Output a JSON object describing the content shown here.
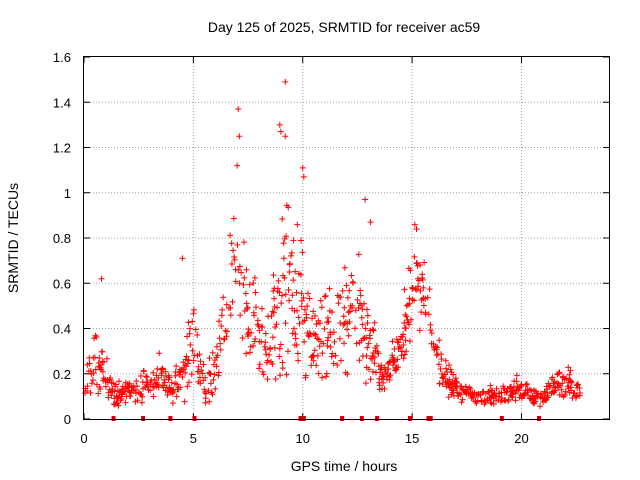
{
  "chart_data": {
    "type": "scatter",
    "title": "Day 125 of 2025, SRMTID for receiver ac59",
    "xlabel": "GPS time / hours",
    "ylabel": "SRMTID / TECUs",
    "xlim": [
      0,
      24
    ],
    "ylim": [
      0,
      1.6
    ],
    "xticks": [
      0,
      5,
      10,
      15,
      20
    ],
    "yticks": [
      0,
      0.2,
      0.4,
      0.6,
      0.8,
      1,
      1.2,
      1.4,
      1.6
    ],
    "ytick_labels": [
      "0",
      "0.2",
      "0.4",
      "0.6",
      "0.8",
      "1",
      "1.2",
      "1.4",
      "1.6"
    ],
    "xtick_labels": [
      "0",
      "5",
      "10",
      "15",
      "20"
    ],
    "grid": true,
    "marker": "+",
    "color": "#ff0000",
    "zero_line_markers_x": [
      1.35,
      2.7,
      3.95,
      5.05,
      9.9,
      10.05,
      11.8,
      12.7,
      13.4,
      14.9,
      15.75,
      15.85,
      19.1,
      20.8
    ],
    "envelope": {
      "description_free_series": true,
      "x": [
        0,
        0.5,
        1,
        1.5,
        2,
        2.5,
        3,
        3.5,
        4,
        4.5,
        5,
        5.5,
        6,
        6.5,
        7,
        7.5,
        8,
        8.5,
        9,
        9.5,
        10,
        10.5,
        11,
        11.5,
        12,
        12.5,
        13,
        13.5,
        14,
        14.5,
        15,
        15.5,
        16,
        16.5,
        17,
        17.5,
        18,
        18.5,
        19,
        19.5,
        20,
        20.5,
        21,
        21.5,
        22,
        22.5
      ],
      "y_center": [
        0.12,
        0.25,
        0.18,
        0.1,
        0.12,
        0.14,
        0.15,
        0.2,
        0.13,
        0.18,
        0.4,
        0.15,
        0.22,
        0.5,
        0.7,
        0.45,
        0.38,
        0.35,
        0.55,
        0.6,
        0.5,
        0.3,
        0.4,
        0.35,
        0.45,
        0.5,
        0.42,
        0.2,
        0.22,
        0.3,
        0.6,
        0.55,
        0.3,
        0.18,
        0.14,
        0.12,
        0.1,
        0.1,
        0.11,
        0.12,
        0.13,
        0.1,
        0.1,
        0.15,
        0.17,
        0.12
      ],
      "y_spread": [
        0.06,
        0.15,
        0.12,
        0.05,
        0.06,
        0.08,
        0.08,
        0.1,
        0.07,
        0.12,
        0.2,
        0.08,
        0.12,
        0.3,
        0.45,
        0.25,
        0.2,
        0.2,
        0.4,
        0.45,
        0.35,
        0.15,
        0.2,
        0.18,
        0.25,
        0.22,
        0.25,
        0.08,
        0.08,
        0.15,
        0.25,
        0.25,
        0.15,
        0.08,
        0.06,
        0.04,
        0.04,
        0.04,
        0.05,
        0.05,
        0.06,
        0.04,
        0.04,
        0.06,
        0.07,
        0.06
      ]
    },
    "peaks": [
      {
        "x": 7.05,
        "y": 1.37
      },
      {
        "x": 7.1,
        "y": 1.25
      },
      {
        "x": 9.2,
        "y": 1.49
      },
      {
        "x": 8.95,
        "y": 1.3
      },
      {
        "x": 9.0,
        "y": 1.27
      },
      {
        "x": 9.2,
        "y": 1.25
      },
      {
        "x": 10.0,
        "y": 1.11
      },
      {
        "x": 7.0,
        "y": 1.12
      },
      {
        "x": 10.05,
        "y": 1.07
      },
      {
        "x": 12.85,
        "y": 0.97
      },
      {
        "x": 13.1,
        "y": 0.87
      },
      {
        "x": 15.2,
        "y": 0.84
      },
      {
        "x": 0.8,
        "y": 0.62
      },
      {
        "x": 4.5,
        "y": 0.71
      }
    ]
  }
}
